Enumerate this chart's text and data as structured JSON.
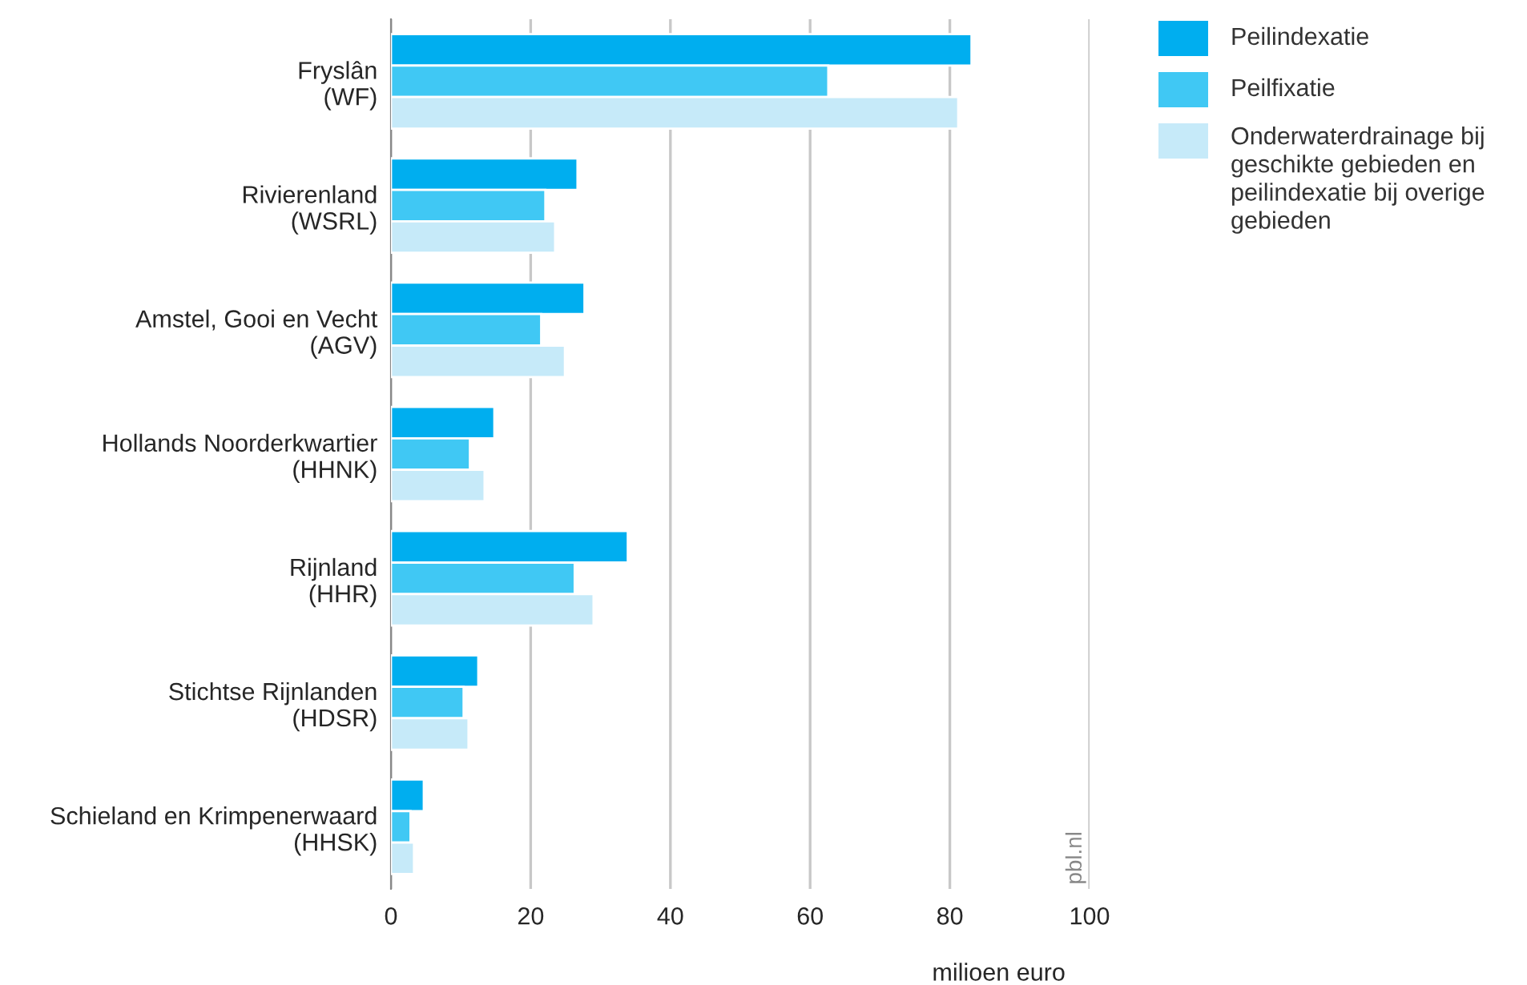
{
  "chart_data": {
    "type": "bar",
    "orientation": "horizontal",
    "categories": [
      "Fryslân\n(WF)",
      "Rivierenland\n(WSRL)",
      "Amstel, Gooi en Vecht\n(AGV)",
      "Hollands Noorderkwartier\n(HHNK)",
      "Rijnland\n(HHR)",
      "Stichtse Rijnlanden\n(HDSR)",
      "Schieland en Krimpenerwaard\n(HHSK)"
    ],
    "series": [
      {
        "name": "Peilindexatie",
        "color": "#00aeef",
        "values": [
          83.1,
          26.7,
          27.7,
          14.8,
          33.9,
          12.5,
          4.7
        ]
      },
      {
        "name": "Peilfixatie",
        "color": "#40c8f4",
        "values": [
          62.6,
          22.1,
          21.5,
          11.3,
          26.3,
          10.4,
          2.8
        ]
      },
      {
        "name": "Onderwaterdrainage bij\ngeschikte gebieden en\npeilindexatie bij overige\ngebieden",
        "color": "#c6eaf9",
        "values": [
          81.2,
          23.5,
          24.9,
          13.4,
          29.0,
          11.1,
          3.3
        ]
      }
    ],
    "xlabel": "milioen euro",
    "xlim": [
      0,
      100
    ],
    "xticks": [
      0,
      20,
      40,
      60,
      80,
      100
    ],
    "grid": "x",
    "legend": "top right",
    "annotations": [
      "pbl.nl"
    ]
  }
}
